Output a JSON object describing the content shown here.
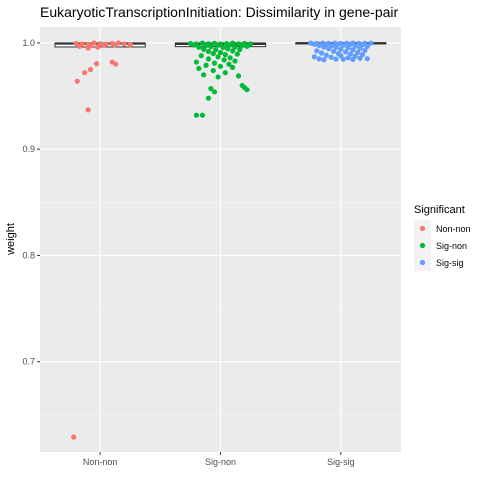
{
  "chart_data": {
    "type": "boxplot-jitter",
    "title": "EukaryoticTranscriptionInitiation: Dissimilarity in gene-pair",
    "xlabel": "",
    "ylabel": "weight",
    "ylim": [
      0.615,
      1.015
    ],
    "yticks": [
      0.7,
      0.8,
      0.9,
      1.0
    ],
    "ytick_labels": [
      "0.7",
      "0.8",
      "0.9",
      "1.0"
    ],
    "categories": [
      "Non-non",
      "Sig-non",
      "Sig-sig"
    ],
    "panel_background": "#ebebeb",
    "grid": true,
    "legend": {
      "title": "Significant",
      "position": "right",
      "entries": [
        "Non-non",
        "Sig-non",
        "Sig-sig"
      ]
    },
    "colors": {
      "Non-non": "#f8766d",
      "Sig-non": "#00ba38",
      "Sig-sig": "#619cff"
    },
    "boxes": [
      {
        "category": "Non-non",
        "q1": 0.9962,
        "median": 0.9993,
        "q3": 1.0
      },
      {
        "category": "Sig-non",
        "q1": 0.9965,
        "median": 0.999,
        "q3": 1.0
      },
      {
        "category": "Sig-sig",
        "q1": 0.9993,
        "median": 0.9998,
        "q3": 1.0
      }
    ],
    "series": [
      {
        "name": "Non-non",
        "points": [
          [
            -0.2,
            0.9995
          ],
          [
            -0.15,
            0.999
          ],
          [
            -0.1,
            0.9985
          ],
          [
            -0.05,
            1.0
          ],
          [
            0.0,
            0.9992
          ],
          [
            0.05,
            0.9988
          ],
          [
            0.1,
            0.9995
          ],
          [
            0.15,
            1.0
          ],
          [
            0.2,
            0.999
          ],
          [
            0.25,
            0.9983
          ],
          [
            -0.08,
            0.9975
          ],
          [
            0.03,
            0.9978
          ],
          [
            0.12,
            0.9982
          ],
          [
            -0.02,
            0.996
          ],
          [
            -0.17,
            0.9968
          ],
          [
            -0.1,
            0.9952
          ],
          [
            0.1,
            0.982
          ],
          [
            0.13,
            0.98
          ],
          [
            -0.03,
            0.9805
          ],
          [
            -0.13,
            0.972
          ],
          [
            -0.08,
            0.975
          ],
          [
            -0.19,
            0.964
          ],
          [
            -0.1,
            0.937
          ],
          [
            -0.22,
            0.629
          ]
        ]
      },
      {
        "name": "Sig-non",
        "points": [
          [
            -0.25,
            0.9995
          ],
          [
            -0.2,
            0.999
          ],
          [
            -0.15,
            0.9998
          ],
          [
            -0.1,
            0.9992
          ],
          [
            -0.05,
            0.9996
          ],
          [
            0.0,
            0.999
          ],
          [
            0.05,
            0.9994
          ],
          [
            0.1,
            0.9998
          ],
          [
            0.15,
            0.9991
          ],
          [
            0.2,
            0.9995
          ],
          [
            0.25,
            0.999
          ],
          [
            -0.22,
            0.998
          ],
          [
            -0.12,
            0.9975
          ],
          [
            -0.02,
            0.9978
          ],
          [
            0.08,
            0.9982
          ],
          [
            0.18,
            0.9976
          ],
          [
            -0.18,
            0.996
          ],
          [
            -0.08,
            0.9965
          ],
          [
            0.02,
            0.9958
          ],
          [
            0.12,
            0.9962
          ],
          [
            0.22,
            0.9968
          ],
          [
            -0.14,
            0.994
          ],
          [
            -0.04,
            0.9935
          ],
          [
            0.06,
            0.9945
          ],
          [
            0.16,
            0.9938
          ],
          [
            -0.1,
            0.992
          ],
          [
            0.0,
            0.991
          ],
          [
            0.1,
            0.9925
          ],
          [
            -0.06,
            0.99
          ],
          [
            0.04,
            0.989
          ],
          [
            0.14,
            0.9895
          ],
          [
            -0.16,
            0.988
          ],
          [
            -0.02,
            0.987
          ],
          [
            0.08,
            0.986
          ],
          [
            -0.1,
            0.985
          ],
          [
            0.03,
            0.984
          ],
          [
            0.12,
            0.983
          ],
          [
            -0.2,
            0.982
          ],
          [
            -0.05,
            0.981
          ],
          [
            0.07,
            0.98
          ],
          [
            -0.12,
            0.979
          ],
          [
            0.0,
            0.978
          ],
          [
            0.1,
            0.977
          ],
          [
            -0.18,
            0.976
          ],
          [
            -0.06,
            0.974
          ],
          [
            0.04,
            0.972
          ],
          [
            -0.14,
            0.97
          ],
          [
            -0.02,
            0.968
          ],
          [
            0.15,
            0.969
          ],
          [
            0.18,
            0.96
          ],
          [
            0.2,
            0.958
          ],
          [
            0.22,
            0.956
          ],
          [
            -0.08,
            0.957
          ],
          [
            -0.1,
            0.948
          ],
          [
            -0.05,
            0.954
          ],
          [
            -0.2,
            0.932
          ],
          [
            -0.15,
            0.932
          ]
        ]
      },
      {
        "name": "Sig-sig",
        "points": [
          [
            -0.25,
            0.9998
          ],
          [
            -0.2,
            0.9995
          ],
          [
            -0.15,
            0.9998
          ],
          [
            -0.1,
            0.9996
          ],
          [
            -0.05,
            0.9999
          ],
          [
            0.0,
            0.9995
          ],
          [
            0.05,
            0.9997
          ],
          [
            0.1,
            0.9998
          ],
          [
            0.15,
            0.9995
          ],
          [
            0.2,
            0.9996
          ],
          [
            0.25,
            0.9998
          ],
          [
            -0.22,
            0.9988
          ],
          [
            -0.12,
            0.9985
          ],
          [
            -0.02,
            0.999
          ],
          [
            0.08,
            0.9987
          ],
          [
            0.18,
            0.9984
          ],
          [
            -0.18,
            0.9975
          ],
          [
            -0.08,
            0.9972
          ],
          [
            0.02,
            0.9978
          ],
          [
            0.12,
            0.997
          ],
          [
            0.22,
            0.9968
          ],
          [
            -0.14,
            0.996
          ],
          [
            -0.04,
            0.9958
          ],
          [
            0.06,
            0.9955
          ],
          [
            0.16,
            0.995
          ],
          [
            -0.1,
            0.9945
          ],
          [
            0.0,
            0.994
          ],
          [
            0.1,
            0.9935
          ],
          [
            0.2,
            0.993
          ],
          [
            -0.2,
            0.9925
          ],
          [
            -0.06,
            0.992
          ],
          [
            0.04,
            0.9915
          ],
          [
            0.14,
            0.991
          ],
          [
            -0.16,
            0.9905
          ],
          [
            -0.02,
            0.99
          ],
          [
            0.08,
            0.9895
          ],
          [
            0.18,
            0.989
          ],
          [
            -0.12,
            0.9885
          ],
          [
            0.0,
            0.988
          ],
          [
            0.12,
            0.9875
          ],
          [
            -0.22,
            0.987
          ],
          [
            -0.08,
            0.9865
          ],
          [
            0.06,
            0.986
          ],
          [
            0.16,
            0.9855
          ],
          [
            -0.18,
            0.985
          ],
          [
            -0.04,
            0.9848
          ],
          [
            0.1,
            0.9845
          ],
          [
            0.22,
            0.9852
          ],
          [
            -0.14,
            0.9842
          ],
          [
            0.02,
            0.9846
          ]
        ]
      }
    ]
  }
}
